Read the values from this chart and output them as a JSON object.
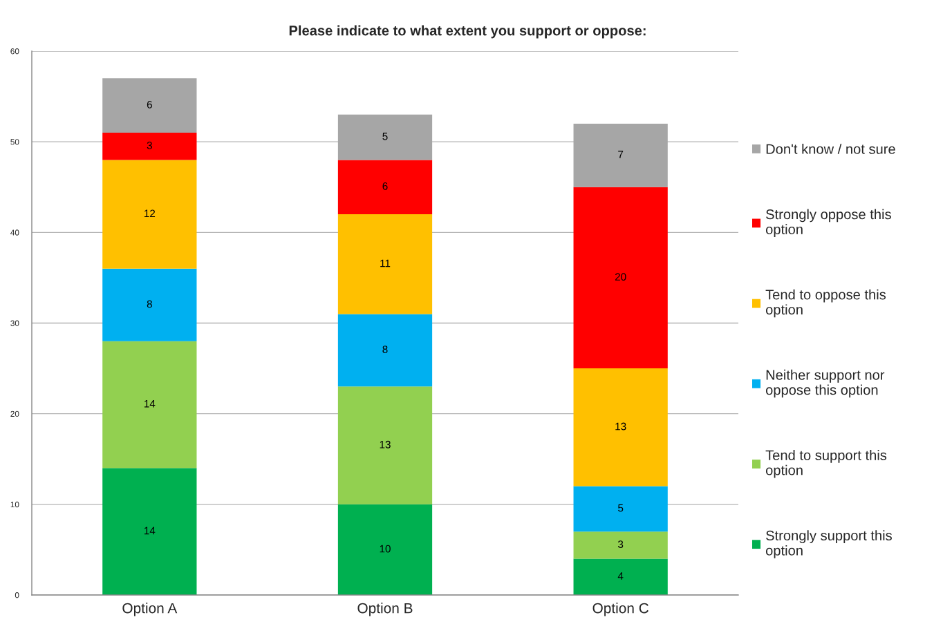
{
  "chart_data": {
    "type": "bar",
    "title": "Please indicate to what extent you support or oppose:",
    "categories": [
      "Option A",
      "Option B",
      "Option C"
    ],
    "stacked": true,
    "series": [
      {
        "name": "Strongly support this option",
        "color": "#00b050",
        "values": [
          14,
          10,
          4
        ]
      },
      {
        "name": "Tend to support this option",
        "color": "#92d050",
        "values": [
          14,
          13,
          3
        ]
      },
      {
        "name": "Neither support nor oppose this option",
        "color": "#00b0f0",
        "values": [
          8,
          8,
          5
        ]
      },
      {
        "name": "Tend to oppose this option",
        "color": "#ffc000",
        "values": [
          12,
          11,
          13
        ]
      },
      {
        "name": "Strongly oppose this option",
        "color": "#ff0000",
        "values": [
          3,
          6,
          20
        ]
      },
      {
        "name": "Don't know / not sure",
        "color": "#a6a6a6",
        "values": [
          6,
          5,
          7
        ]
      }
    ],
    "ylim": [
      0,
      60
    ],
    "yticks": [
      0,
      10,
      20,
      30,
      40,
      50,
      60
    ],
    "grid": "y",
    "legend": "right",
    "data_labels": true
  }
}
